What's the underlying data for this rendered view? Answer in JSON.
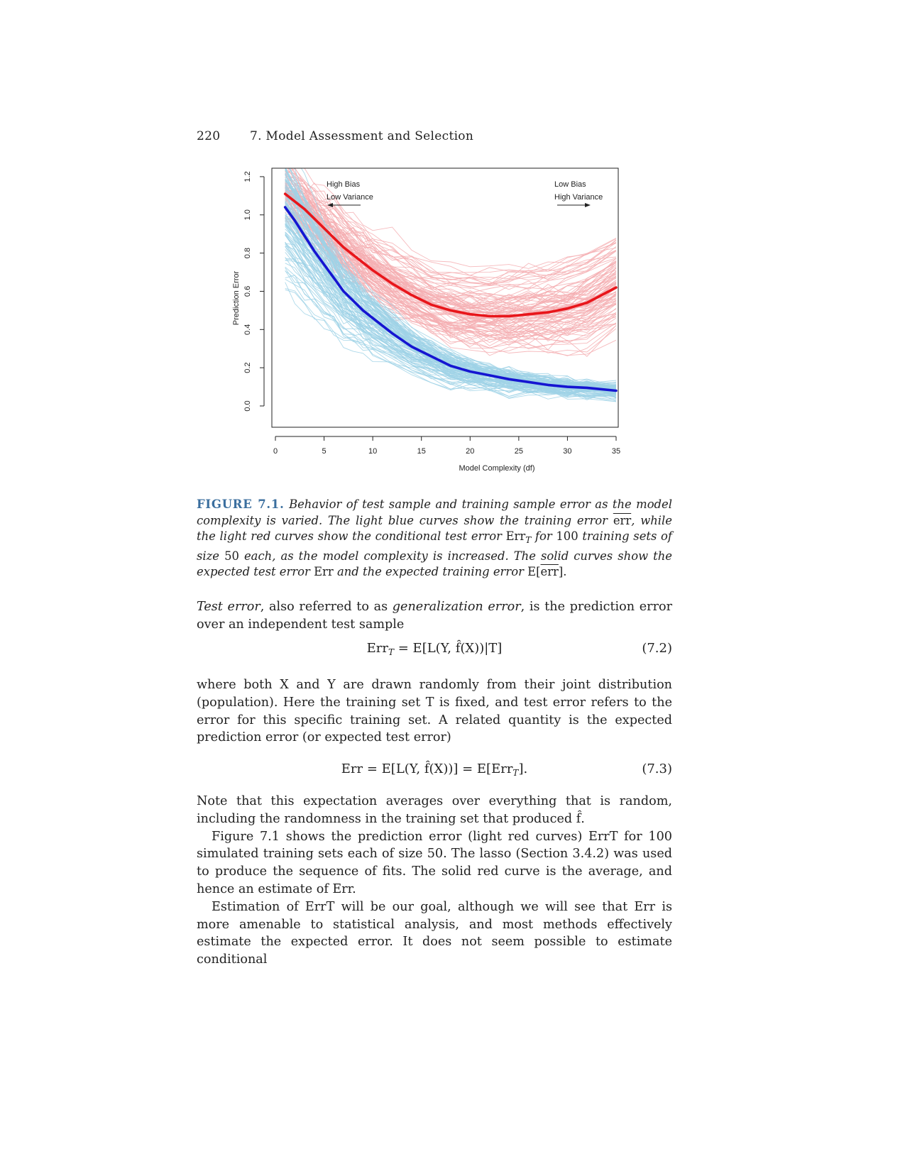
{
  "header": {
    "page_number": "220",
    "chapter_title": "7. Model Assessment and Selection"
  },
  "chart_data": {
    "type": "line",
    "xlabel": "Model Complexity (df)",
    "ylabel": "Prediction Error",
    "xlim": [
      0,
      35
    ],
    "ylim": [
      0,
      1.25
    ],
    "x_ticks": [
      "0",
      "5",
      "10",
      "15",
      "20",
      "25",
      "30",
      "35"
    ],
    "y_ticks": [
      "0.0",
      "0.2",
      "0.4",
      "0.6",
      "0.8",
      "1.0",
      "1.2"
    ],
    "annotations": {
      "left_line1": "High Bias",
      "left_line2": "Low Variance",
      "right_line1": "Low Bias",
      "right_line2": "High Variance"
    },
    "x": [
      1,
      2,
      3,
      4,
      5,
      6,
      7,
      8,
      9,
      10,
      12,
      14,
      16,
      18,
      20,
      22,
      24,
      26,
      28,
      30,
      32,
      35
    ],
    "series": [
      {
        "values": [
          1.11,
          1.07,
          1.03,
          0.98,
          0.93,
          0.88,
          0.83,
          0.79,
          0.75,
          0.71,
          0.64,
          0.58,
          0.53,
          0.5,
          0.48,
          0.47,
          0.47,
          0.48,
          0.49,
          0.51,
          0.54,
          0.62
        ],
        "color": "#e8161b"
      },
      {
        "values": [
          1.04,
          0.97,
          0.89,
          0.81,
          0.74,
          0.67,
          0.6,
          0.55,
          0.5,
          0.46,
          0.38,
          0.31,
          0.26,
          0.21,
          0.18,
          0.16,
          0.14,
          0.125,
          0.11,
          0.1,
          0.095,
          0.08
        ],
        "color": "#1515d1"
      }
    ],
    "thin_curve_colors": {
      "test": "#f4aeb1",
      "train": "#9fd2e6"
    },
    "thin_curve_count": 100
  },
  "caption": {
    "label": "FIGURE 7.1.",
    "t1": "Behavior of test sample and training sample error as the model complexity is varied. The light blue curves show the training error",
    "err_bar": "err",
    "t2": ", while the light red curves show the conditional test error",
    "errT": "Err",
    "sub_T": "T",
    "t3": "for",
    "n100": "100",
    "t4": "training sets of size",
    "n50": "50",
    "t5": "each, as the model complexity is increased. The solid curves show the expected test error",
    "err_plain": "Err",
    "t6": "and the expected training error",
    "E_err": "E[",
    "E_err_close": "]."
  },
  "para1": {
    "a": "Test error",
    "b": ", also referred to as ",
    "c": "generalization error",
    "d": ", is the prediction error over an independent test sample"
  },
  "eq72": {
    "lhs": "Err",
    "sub": "T",
    "rhs": "= E[L(Y, f̂(X))|T]",
    "num": "(7.2)"
  },
  "para2": "where both X and Y are drawn randomly from their joint distribution (population). Here the training set T is fixed, and test error refers to the error for this specific training set. A related quantity is the expected prediction error (or expected test error)",
  "eq73": {
    "text": "Err = E[L(Y, f̂(X))] = E[Err",
    "sub": "T",
    "tail": "].",
    "num": "(7.3)"
  },
  "para3": "Note that this expectation averages over everything that is random, including the randomness in the training set that produced f̂.",
  "para4": "Figure 7.1 shows the prediction error (light red curves) ErrT for 100 simulated training sets each of size 50. The lasso (Section 3.4.2) was used to produce the sequence of fits. The solid red curve is the average, and hence an estimate of Err.",
  "para5": "Estimation of ErrT will be our goal, although we will see that Err is more amenable to statistical analysis, and most methods effectively estimate the expected error. It does not seem possible to estimate conditional"
}
